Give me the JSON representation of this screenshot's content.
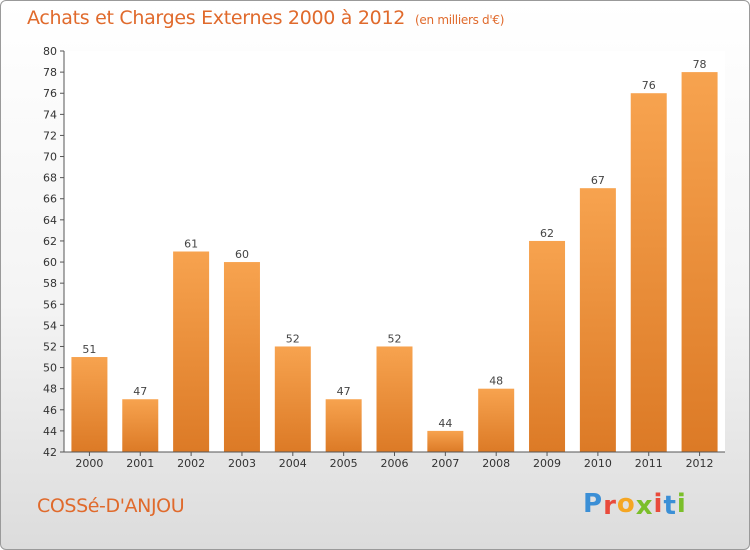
{
  "header": {
    "title": "Achats et Charges Externes 2000 à 2012",
    "subtitle": "(en milliers d'€)"
  },
  "footer": {
    "commune": "COSSé-D'ANJOU",
    "logo_letters": [
      {
        "char": "P",
        "color": "#3b8fd6"
      },
      {
        "char": "r",
        "color": "#e94b3c"
      },
      {
        "char": "o",
        "color": "#f5a623"
      },
      {
        "char": "x",
        "color": "#7bbf2a"
      },
      {
        "char": "i",
        "color": "#e94b3c"
      },
      {
        "char": "t",
        "color": "#3b8fd6"
      },
      {
        "char": "i",
        "color": "#7bbf2a"
      }
    ]
  },
  "chart_data": {
    "type": "bar",
    "categories": [
      "2000",
      "2001",
      "2002",
      "2003",
      "2004",
      "2005",
      "2006",
      "2007",
      "2008",
      "2009",
      "2010",
      "2011",
      "2012"
    ],
    "values": [
      51,
      47,
      61,
      60,
      52,
      47,
      52,
      44,
      48,
      62,
      67,
      76,
      78
    ],
    "ylim": [
      42,
      80
    ],
    "ytick_step": 2,
    "grid": false,
    "bar_color_light": "#f7a34f",
    "bar_color_dark": "#dc7a26"
  }
}
